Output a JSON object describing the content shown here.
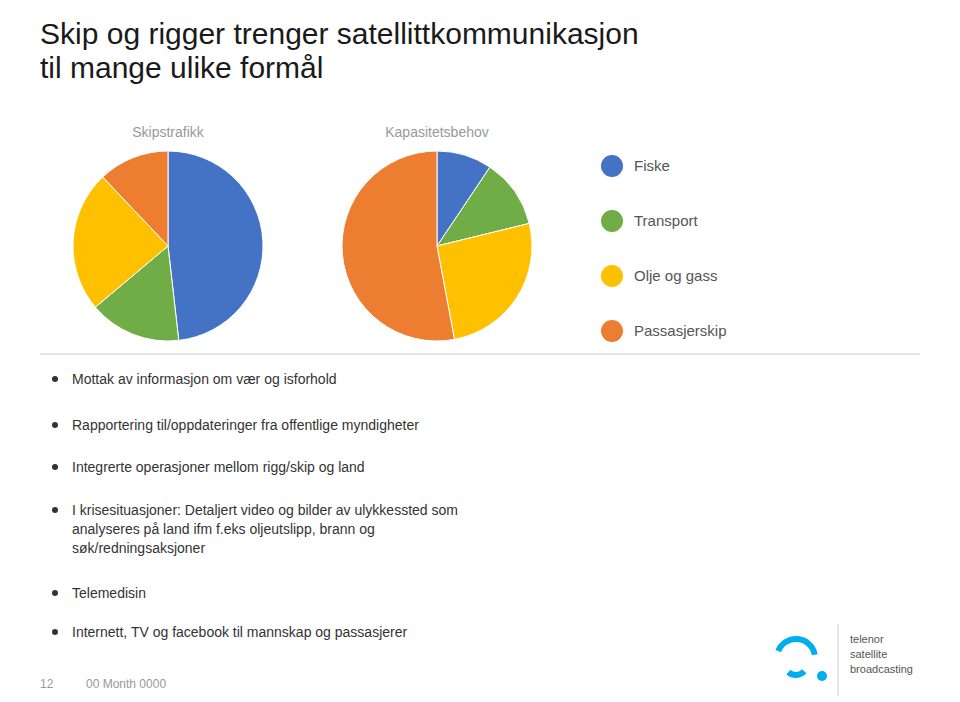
{
  "title": "Skip og rigger trenger satellittkommunikasjon\ntil mange ulike formål",
  "annotations": [
    "Mottak av informasjon om vær og isforhold",
    "Rapportering til/oppdateringer fra offentlige myndigheter",
    "Integrerte operasjoner mellom rigg/skip og land",
    "I krisesituasjoner: Detaljert video og bilder av ulykkessted som\nanalyseres på land ifm f.eks oljeutslipp, brann og\nsøk/redningsaksjoner",
    "Telemedisin",
    "Internett, TV og facebook til mannskap og passasjerer",
    "12",
    "00 Month 0000",
    "telenor\nsatellite\nbroadcasting"
  ],
  "chart_data": [
    {
      "type": "pie",
      "title": "Skipstrafikk",
      "categories": [
        "Fiske",
        "Transport",
        "Olje og gass",
        "Passasjerskip"
      ],
      "values": [
        40,
        13,
        20,
        10
      ],
      "colors": [
        "#4472C4",
        "#70AD47",
        "#FFC000",
        "#ED7D31"
      ]
    },
    {
      "type": "pie",
      "title": "Kapasitetsbehov",
      "categories": [
        "Fiske",
        "Transport",
        "Olje og gass",
        "Passasjerskip"
      ],
      "values": [
        8,
        10,
        22,
        45
      ],
      "colors": [
        "#4472C4",
        "#70AD47",
        "#FFC000",
        "#ED7D31"
      ]
    }
  ]
}
